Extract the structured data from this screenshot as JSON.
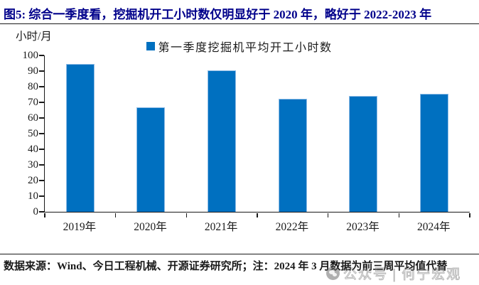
{
  "figure": {
    "title": "图5: 综合一季度看，挖掘机开工小时数仅明显好于 2020 年，略好于 2022-2023 年",
    "footer": "数据来源：Wind、今日工程机械、开源证券研究所；注：2024 年 3 月数据为前三周平均值代替",
    "watermark": "公众号 | 何宁宏观"
  },
  "chart_data": {
    "type": "bar",
    "categories": [
      "2019年",
      "2020年",
      "2021年",
      "2022年",
      "2023年",
      "2024年"
    ],
    "values": [
      94.5,
      67,
      90.5,
      72.5,
      74,
      75.5
    ],
    "series_name": "第一季度挖掘机平均开工小时数",
    "title": "图5: 综合一季度看，挖掘机开工小时数仅明显好于 2020 年，略好于 2022-2023 年",
    "xlabel": "",
    "ylabel": "小时/月",
    "ylim": [
      0,
      100
    ],
    "ytick_step": 10,
    "grid": false,
    "legend_position": "top-center",
    "colors": {
      "bar_fill": "#0070C0",
      "bar_border": "#8FBCE6",
      "title_text": "#00008B",
      "axis_text": "#1a1a1a"
    }
  }
}
